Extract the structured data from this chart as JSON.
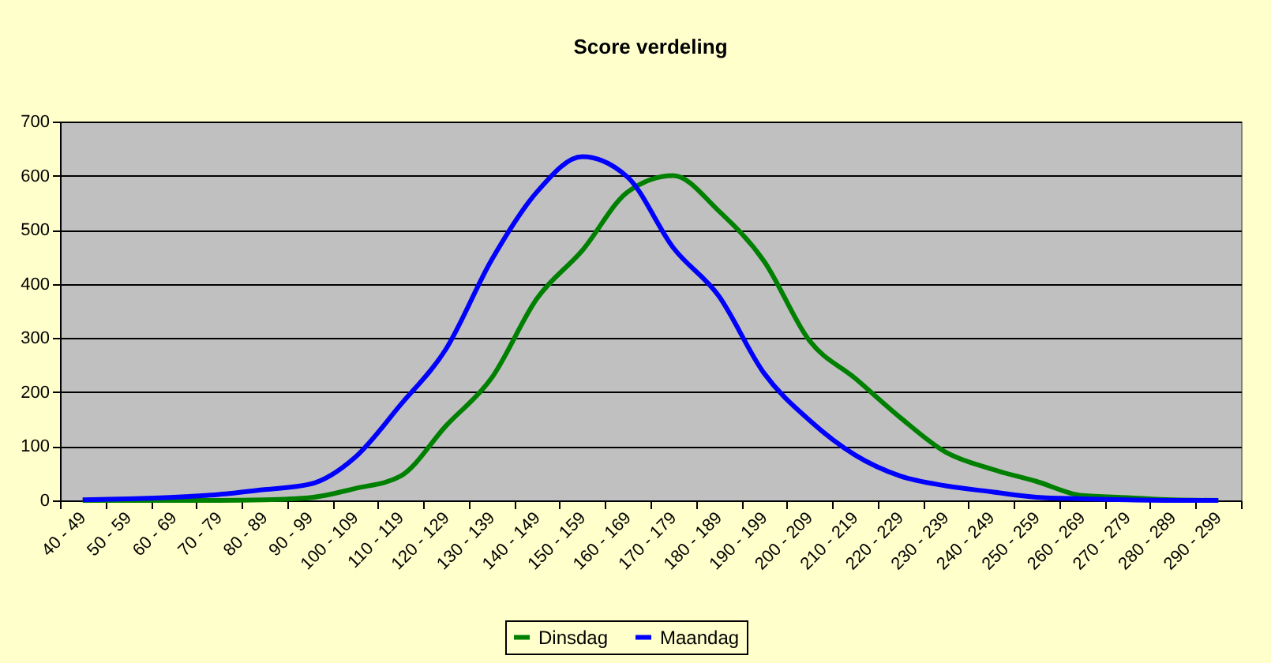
{
  "chart_data": {
    "type": "line",
    "title": "Score verdeling",
    "categories": [
      "40 - 49",
      "50 - 59",
      "60 - 69",
      "70 - 79",
      "80 - 89",
      "90 - 99",
      "100 - 109",
      "110 - 119",
      "120 - 129",
      "130 - 139",
      "140 - 149",
      "150 - 159",
      "160 - 169",
      "170 - 179",
      "180 - 189",
      "190 - 199",
      "200 - 209",
      "210 - 219",
      "220 - 229",
      "230 - 239",
      "240 - 249",
      "250 - 259",
      "260 - 269",
      "270 - 279",
      "280 - 289",
      "290 - 299"
    ],
    "series": [
      {
        "name": "Dinsdag",
        "color": "#008000",
        "values": [
          0,
          0,
          0,
          0,
          1,
          5,
          22,
          45,
          138,
          226,
          373,
          462,
          570,
          600,
          535,
          442,
          295,
          226,
          153,
          89,
          58,
          35,
          9,
          5,
          1,
          0
        ]
      },
      {
        "name": "Maandag",
        "color": "#0000ff",
        "values": [
          1,
          3,
          6,
          11,
          20,
          30,
          80,
          177,
          280,
          444,
          570,
          635,
          597,
          467,
          378,
          235,
          148,
          84,
          45,
          27,
          16,
          6,
          3,
          1,
          0,
          0
        ]
      }
    ],
    "ylim": [
      0,
      700
    ],
    "yticks": [
      0,
      100,
      200,
      300,
      400,
      500,
      600,
      700
    ],
    "grid": "y",
    "legend": "bottom",
    "marker": "none",
    "line_style": "solid"
  }
}
